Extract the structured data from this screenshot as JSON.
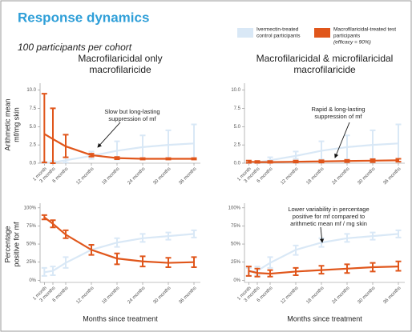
{
  "title": "Response dynamics",
  "subtitle": "100 participants per cohort",
  "legend": [
    {
      "name": [
        "Ivermectin-treated",
        "control participants"
      ],
      "color": "#d9e8f6"
    },
    {
      "name": [
        "Macrofilaricidal-treated test",
        "participants"
      ],
      "note": "(efficacy = 90%)",
      "color": "#e0561b"
    }
  ],
  "chart_data": [
    {
      "type": "line",
      "title": [
        "Macrofilaricidal only",
        "macrofilaricide"
      ],
      "ylabel": [
        "Arithmetic mean",
        "mf/mg skin"
      ],
      "annotation": [
        "Slow but long-lasting",
        "suppression of mf"
      ],
      "x": [
        1,
        3,
        6,
        12,
        18,
        24,
        30,
        36
      ],
      "xlim": [
        0,
        37.5
      ],
      "xticks": [
        {
          "value": 1,
          "label": "1 month"
        },
        {
          "value": 3,
          "label": "3 months"
        },
        {
          "value": 6,
          "label": "6 months"
        },
        {
          "value": 12,
          "label": "12 months"
        },
        {
          "value": 18,
          "label": "18 months"
        },
        {
          "value": 24,
          "label": "24 months"
        },
        {
          "value": 30,
          "label": "30 months"
        },
        {
          "value": 36,
          "label": "36 months"
        }
      ],
      "ylim": [
        0,
        10.5
      ],
      "yticks": [
        {
          "value": 0,
          "label": "0.0"
        },
        {
          "value": 2.5,
          "label": "2.5"
        },
        {
          "value": 5,
          "label": "5.0"
        },
        {
          "value": 7.5,
          "label": "7.5"
        },
        {
          "value": 10,
          "label": "10.0"
        }
      ],
      "series": [
        {
          "color": "#d9e8f6",
          "values": [
            0.05,
            0.1,
            0.4,
            1.0,
            1.7,
            2.2,
            2.5,
            2.7
          ],
          "lower": [
            0,
            0,
            0.1,
            0.6,
            0.5,
            0.5,
            0.6,
            0.6
          ],
          "upper": [
            0.2,
            0.3,
            0.8,
            1.6,
            3.0,
            3.8,
            4.5,
            5.3
          ]
        },
        {
          "color": "#e0561b",
          "values": [
            4.0,
            3.3,
            2.3,
            1.1,
            0.7,
            0.6,
            0.6,
            0.6
          ],
          "lower": [
            0.1,
            0,
            0.8,
            0.9,
            0.55,
            0.5,
            0.5,
            0.5
          ],
          "upper": [
            9.5,
            7.5,
            3.9,
            1.3,
            0.85,
            0.7,
            0.7,
            0.7
          ]
        }
      ]
    },
    {
      "type": "line",
      "title": [
        "Macrofilaricidal & microfilaricidal",
        "macrofilaricide"
      ],
      "annotation": [
        "Rapid & long-lasting",
        "suppression of mf"
      ],
      "x": [
        1,
        3,
        6,
        12,
        18,
        24,
        30,
        36
      ],
      "xlim": [
        0,
        37.5
      ],
      "xticks": [
        {
          "value": 1,
          "label": "1 month"
        },
        {
          "value": 3,
          "label": "3 months"
        },
        {
          "value": 6,
          "label": "6 months"
        },
        {
          "value": 12,
          "label": "12 months"
        },
        {
          "value": 18,
          "label": "18 months"
        },
        {
          "value": 24,
          "label": "24 months"
        },
        {
          "value": 30,
          "label": "30 months"
        },
        {
          "value": 36,
          "label": "36 months"
        }
      ],
      "ylim": [
        0,
        10.5
      ],
      "yticks": [
        {
          "value": 0,
          "label": "0.0"
        },
        {
          "value": 2.5,
          "label": "2.5"
        },
        {
          "value": 5,
          "label": "5.0"
        },
        {
          "value": 7.5,
          "label": "7.5"
        },
        {
          "value": 10,
          "label": "10.0"
        }
      ],
      "series": [
        {
          "color": "#d9e8f6",
          "values": [
            0.05,
            0.1,
            0.4,
            1.0,
            1.7,
            2.2,
            2.5,
            2.7
          ],
          "lower": [
            0,
            0,
            0.1,
            0.6,
            0.5,
            0.5,
            0.6,
            0.6
          ],
          "upper": [
            0.2,
            0.3,
            0.8,
            1.6,
            3.0,
            3.8,
            4.5,
            5.3
          ]
        },
        {
          "color": "#e0561b",
          "values": [
            0.2,
            0.15,
            0.15,
            0.2,
            0.25,
            0.3,
            0.35,
            0.4
          ],
          "lower": [
            0.05,
            0.05,
            0.05,
            0.1,
            0.1,
            0.15,
            0.15,
            0.2
          ],
          "upper": [
            0.35,
            0.3,
            0.3,
            0.35,
            0.4,
            0.45,
            0.55,
            0.6
          ]
        }
      ]
    },
    {
      "type": "line",
      "ylabel": [
        "Percentage",
        "positive for mf"
      ],
      "xlabel": "Months since treatment",
      "x": [
        1,
        3,
        6,
        12,
        18,
        24,
        30,
        36
      ],
      "xlim": [
        0,
        37.5
      ],
      "xticks": [
        {
          "value": 1,
          "label": "1 month"
        },
        {
          "value": 3,
          "label": "3 months"
        },
        {
          "value": 6,
          "label": "6 months"
        },
        {
          "value": 12,
          "label": "12 months"
        },
        {
          "value": 18,
          "label": "18 months"
        },
        {
          "value": 24,
          "label": "24 months"
        },
        {
          "value": 30,
          "label": "30 months"
        },
        {
          "value": 36,
          "label": "36 months"
        }
      ],
      "ylim": [
        -3,
        102
      ],
      "yticks": [
        {
          "value": 0,
          "label": "0%"
        },
        {
          "value": 25,
          "label": "25%"
        },
        {
          "value": 50,
          "label": "50%"
        },
        {
          "value": 75,
          "label": "75%"
        },
        {
          "value": 100,
          "label": "100%"
        }
      ],
      "series": [
        {
          "color": "#d9e8f6",
          "values": [
            11,
            13,
            24,
            42,
            52,
            58,
            61,
            64
          ],
          "lower": [
            6,
            7,
            17,
            35,
            46,
            53,
            56,
            59
          ],
          "upper": [
            17,
            19,
            32,
            48,
            58,
            64,
            66,
            69
          ]
        },
        {
          "color": "#e0561b",
          "values": [
            87,
            78,
            63,
            42,
            30,
            26,
            24,
            25
          ],
          "lower": [
            84,
            73,
            58,
            35,
            22,
            19,
            18,
            18
          ],
          "upper": [
            90,
            83,
            69,
            49,
            37,
            33,
            31,
            32
          ]
        }
      ]
    },
    {
      "type": "line",
      "xlabel": "Months since treatment",
      "annotation": [
        "Lower variability in percentage",
        "positive for mf compared to",
        "arithmetic mean mf / mg skin"
      ],
      "x": [
        1,
        3,
        6,
        12,
        18,
        24,
        30,
        36
      ],
      "xlim": [
        0,
        37.5
      ],
      "xticks": [
        {
          "value": 1,
          "label": "1 month"
        },
        {
          "value": 3,
          "label": "3 months"
        },
        {
          "value": 6,
          "label": "6 months"
        },
        {
          "value": 12,
          "label": "12 months"
        },
        {
          "value": 18,
          "label": "18 months"
        },
        {
          "value": 24,
          "label": "24 months"
        },
        {
          "value": 30,
          "label": "30 months"
        },
        {
          "value": 36,
          "label": "36 months"
        }
      ],
      "ylim": [
        -3,
        102
      ],
      "yticks": [
        {
          "value": 0,
          "label": "0%"
        },
        {
          "value": 25,
          "label": "25%"
        },
        {
          "value": 50,
          "label": "50%"
        },
        {
          "value": 75,
          "label": "75%"
        },
        {
          "value": 100,
          "label": "100%"
        }
      ],
      "series": [
        {
          "color": "#d9e8f6",
          "values": [
            11,
            13,
            24,
            42,
            52,
            58,
            61,
            64
          ],
          "lower": [
            6,
            7,
            17,
            35,
            46,
            53,
            56,
            59
          ],
          "upper": [
            17,
            19,
            32,
            48,
            58,
            64,
            66,
            69
          ]
        },
        {
          "color": "#e0561b",
          "values": [
            13,
            10,
            9,
            12,
            14,
            16,
            18,
            19
          ],
          "lower": [
            6,
            5,
            5,
            7,
            9,
            10,
            12,
            13
          ],
          "upper": [
            19,
            16,
            14,
            17,
            20,
            22,
            24,
            26
          ]
        }
      ]
    }
  ]
}
